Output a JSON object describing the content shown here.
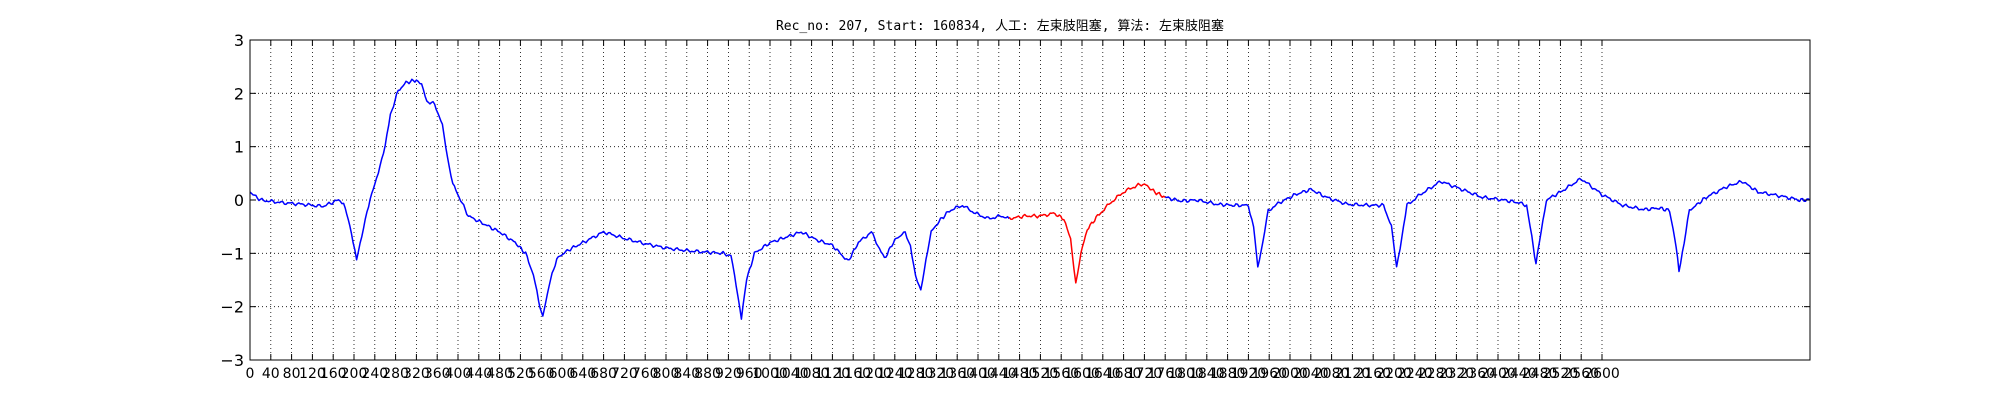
{
  "chart_data": {
    "type": "line",
    "title": "Rec_no: 207, Start: 160834, 人工: 左束肢阻塞, 算法: 左束肢阻塞",
    "xlabel": "",
    "ylabel": "",
    "xlim": [
      0,
      3000
    ],
    "ylim": [
      -3,
      3
    ],
    "grid": true,
    "yticks": [
      -3,
      -2,
      -1,
      0,
      1,
      2,
      3
    ],
    "xticks": [
      0,
      40,
      80,
      120,
      160,
      200,
      240,
      280,
      320,
      360,
      400,
      440,
      480,
      520,
      560,
      600,
      640,
      680,
      720,
      760,
      800,
      840,
      880,
      920,
      960,
      1000,
      1040,
      1080,
      1120,
      1160,
      1200,
      1240,
      1280,
      1320,
      1360,
      1400,
      1440,
      1480,
      1520,
      1560,
      1600,
      1640,
      1680,
      1720,
      1760,
      1800,
      1840,
      1880,
      1920,
      1960,
      2000,
      2040,
      2080,
      2120,
      2160,
      2200,
      2240,
      2280,
      2320,
      2360,
      2400,
      2440,
      2480,
      2520,
      2560,
      2600
    ],
    "series": [
      {
        "color": "#0000ff",
        "points": [
          [
            0,
            0.15
          ],
          [
            20,
            0.0
          ],
          [
            60,
            -0.05
          ],
          [
            100,
            -0.08
          ],
          [
            140,
            -0.12
          ],
          [
            170,
            0.0
          ],
          [
            180,
            -0.05
          ],
          [
            195,
            -0.6
          ],
          [
            205,
            -1.12
          ],
          [
            215,
            -0.7
          ],
          [
            225,
            -0.2
          ],
          [
            240,
            0.3
          ],
          [
            250,
            0.65
          ],
          [
            260,
            1.0
          ],
          [
            270,
            1.6
          ],
          [
            285,
            2.05
          ],
          [
            300,
            2.2
          ],
          [
            320,
            2.25
          ],
          [
            330,
            2.15
          ],
          [
            340,
            1.85
          ],
          [
            355,
            1.8
          ],
          [
            370,
            1.4
          ],
          [
            380,
            0.8
          ],
          [
            390,
            0.3
          ],
          [
            405,
            0.0
          ],
          [
            420,
            -0.3
          ],
          [
            450,
            -0.45
          ],
          [
            480,
            -0.6
          ],
          [
            510,
            -0.8
          ],
          [
            530,
            -1.0
          ],
          [
            545,
            -1.4
          ],
          [
            555,
            -1.9
          ],
          [
            563,
            -2.2
          ],
          [
            575,
            -1.6
          ],
          [
            590,
            -1.1
          ],
          [
            610,
            -0.95
          ],
          [
            640,
            -0.8
          ],
          [
            680,
            -0.6
          ],
          [
            720,
            -0.72
          ],
          [
            760,
            -0.82
          ],
          [
            800,
            -0.9
          ],
          [
            840,
            -0.95
          ],
          [
            880,
            -0.98
          ],
          [
            910,
            -1.0
          ],
          [
            925,
            -1.05
          ],
          [
            935,
            -1.6
          ],
          [
            945,
            -2.2
          ],
          [
            955,
            -1.5
          ],
          [
            970,
            -1.0
          ],
          [
            1000,
            -0.8
          ],
          [
            1030,
            -0.7
          ],
          [
            1060,
            -0.6
          ],
          [
            1090,
            -0.75
          ],
          [
            1120,
            -0.85
          ],
          [
            1150,
            -1.15
          ],
          [
            1170,
            -0.8
          ],
          [
            1195,
            -0.6
          ],
          [
            1220,
            -1.1
          ],
          [
            1240,
            -0.75
          ],
          [
            1260,
            -0.6
          ],
          [
            1270,
            -0.85
          ],
          [
            1280,
            -1.45
          ],
          [
            1290,
            -1.7
          ],
          [
            1300,
            -1.1
          ],
          [
            1310,
            -0.6
          ],
          [
            1325,
            -0.4
          ],
          [
            1345,
            -0.2
          ],
          [
            1370,
            -0.1
          ],
          [
            1395,
            -0.25
          ],
          [
            1420,
            -0.35
          ],
          [
            1445,
            -0.3
          ],
          [
            1460,
            -0.35
          ]
        ]
      },
      {
        "color": "#ff0000",
        "points": [
          [
            1460,
            -0.35
          ],
          [
            1490,
            -0.3
          ],
          [
            1520,
            -0.3
          ],
          [
            1545,
            -0.25
          ],
          [
            1565,
            -0.35
          ],
          [
            1578,
            -0.75
          ],
          [
            1588,
            -1.55
          ],
          [
            1598,
            -1.0
          ],
          [
            1610,
            -0.55
          ],
          [
            1630,
            -0.3
          ],
          [
            1655,
            -0.05
          ],
          [
            1680,
            0.15
          ],
          [
            1705,
            0.27
          ],
          [
            1720,
            0.3
          ],
          [
            1740,
            0.15
          ],
          [
            1760,
            0.05
          ]
        ]
      },
      {
        "color": "#0000ff",
        "points": [
          [
            1760,
            0.05
          ],
          [
            1790,
            -0.02
          ],
          [
            1820,
            0.0
          ],
          [
            1860,
            -0.08
          ],
          [
            1890,
            -0.1
          ],
          [
            1920,
            -0.1
          ],
          [
            1930,
            -0.5
          ],
          [
            1938,
            -1.25
          ],
          [
            1948,
            -0.8
          ],
          [
            1958,
            -0.2
          ],
          [
            1980,
            -0.05
          ],
          [
            2010,
            0.1
          ],
          [
            2040,
            0.2
          ],
          [
            2070,
            0.05
          ],
          [
            2110,
            -0.08
          ],
          [
            2150,
            -0.1
          ],
          [
            2180,
            -0.1
          ],
          [
            2195,
            -0.5
          ],
          [
            2205,
            -1.25
          ],
          [
            2215,
            -0.7
          ],
          [
            2225,
            -0.1
          ],
          [
            2250,
            0.1
          ],
          [
            2290,
            0.35
          ],
          [
            2330,
            0.2
          ],
          [
            2370,
            0.05
          ],
          [
            2410,
            0.0
          ],
          [
            2440,
            -0.05
          ],
          [
            2455,
            -0.1
          ],
          [
            2465,
            -0.7
          ],
          [
            2473,
            -1.2
          ],
          [
            2483,
            -0.6
          ],
          [
            2493,
            0.0
          ],
          [
            2520,
            0.15
          ],
          [
            2560,
            0.4
          ],
          [
            2600,
            0.1
          ],
          [
            2640,
            -0.1
          ],
          [
            2680,
            -0.18
          ],
          [
            2710,
            -0.15
          ],
          [
            2730,
            -0.2
          ],
          [
            2740,
            -0.7
          ],
          [
            2748,
            -1.32
          ],
          [
            2758,
            -0.8
          ],
          [
            2768,
            -0.2
          ],
          [
            2800,
            0.05
          ],
          [
            2840,
            0.25
          ],
          [
            2870,
            0.35
          ],
          [
            2900,
            0.15
          ],
          [
            2940,
            0.08
          ],
          [
            2980,
            0.0
          ],
          [
            3000,
            0.0
          ]
        ]
      }
    ]
  }
}
